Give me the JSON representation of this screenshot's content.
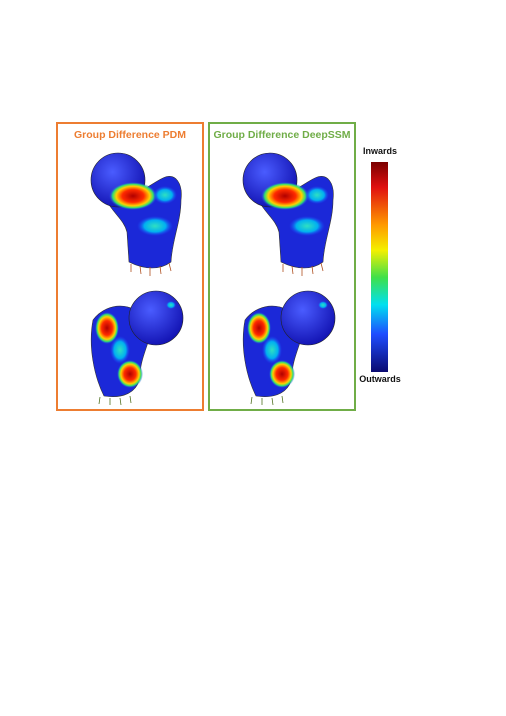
{
  "panels": [
    {
      "title": "Group Difference PDM"
    },
    {
      "title": "Group Difference DeepSSM"
    }
  ],
  "colorbar": {
    "top_label": "Inwards",
    "bottom_label": "Outwards"
  }
}
